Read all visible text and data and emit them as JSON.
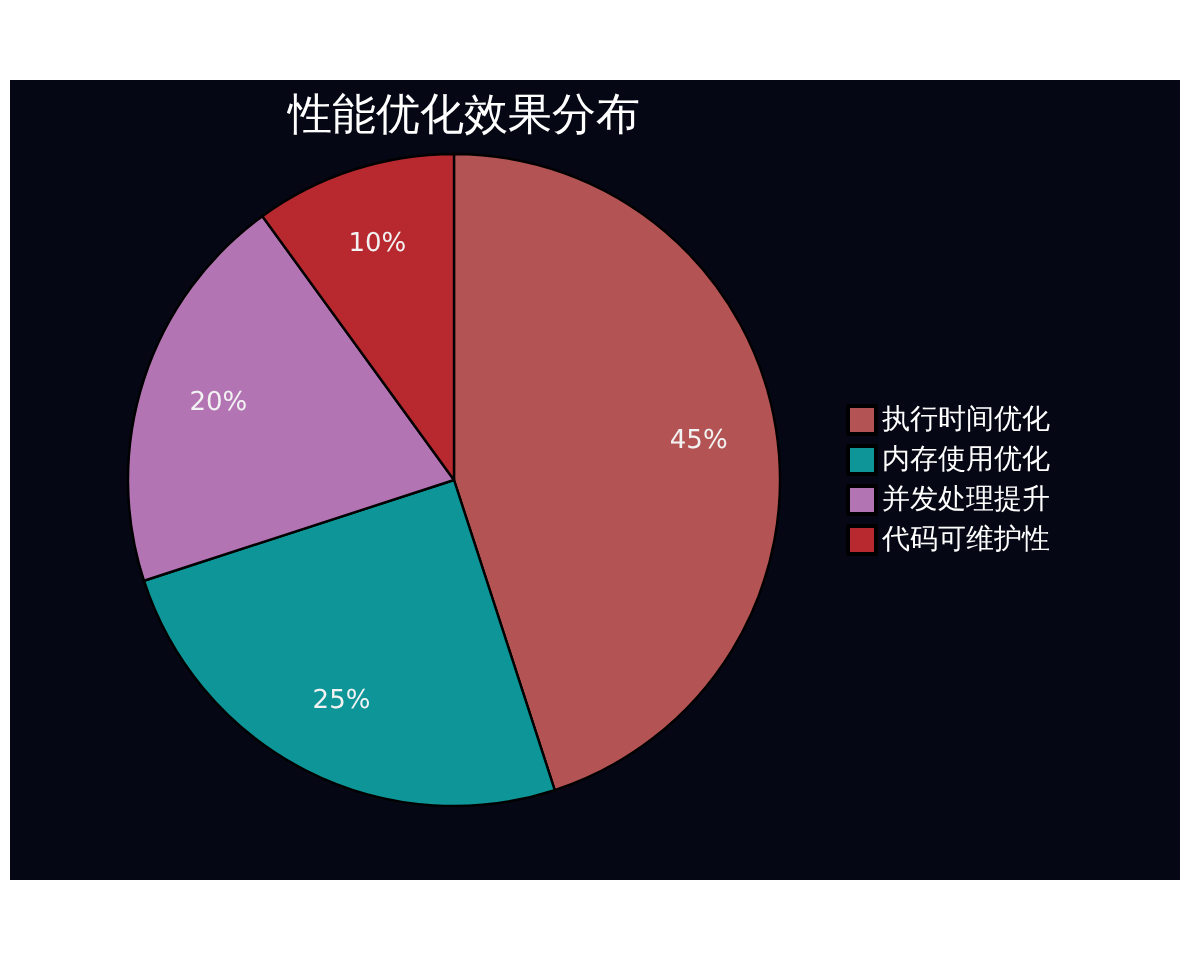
{
  "chart_data": {
    "type": "pie",
    "title": "性能优化效果分布",
    "categories": [
      "执行时间优化",
      "内存使用优化",
      "并发处理提升",
      "代码可维护性"
    ],
    "values": [
      45,
      25,
      20,
      10
    ],
    "colors": [
      "#b35353",
      "#0e9598",
      "#b374b4",
      "#b7282f"
    ],
    "value_labels": [
      "45%",
      "25%",
      "20%",
      "10%"
    ],
    "legend": "right"
  }
}
